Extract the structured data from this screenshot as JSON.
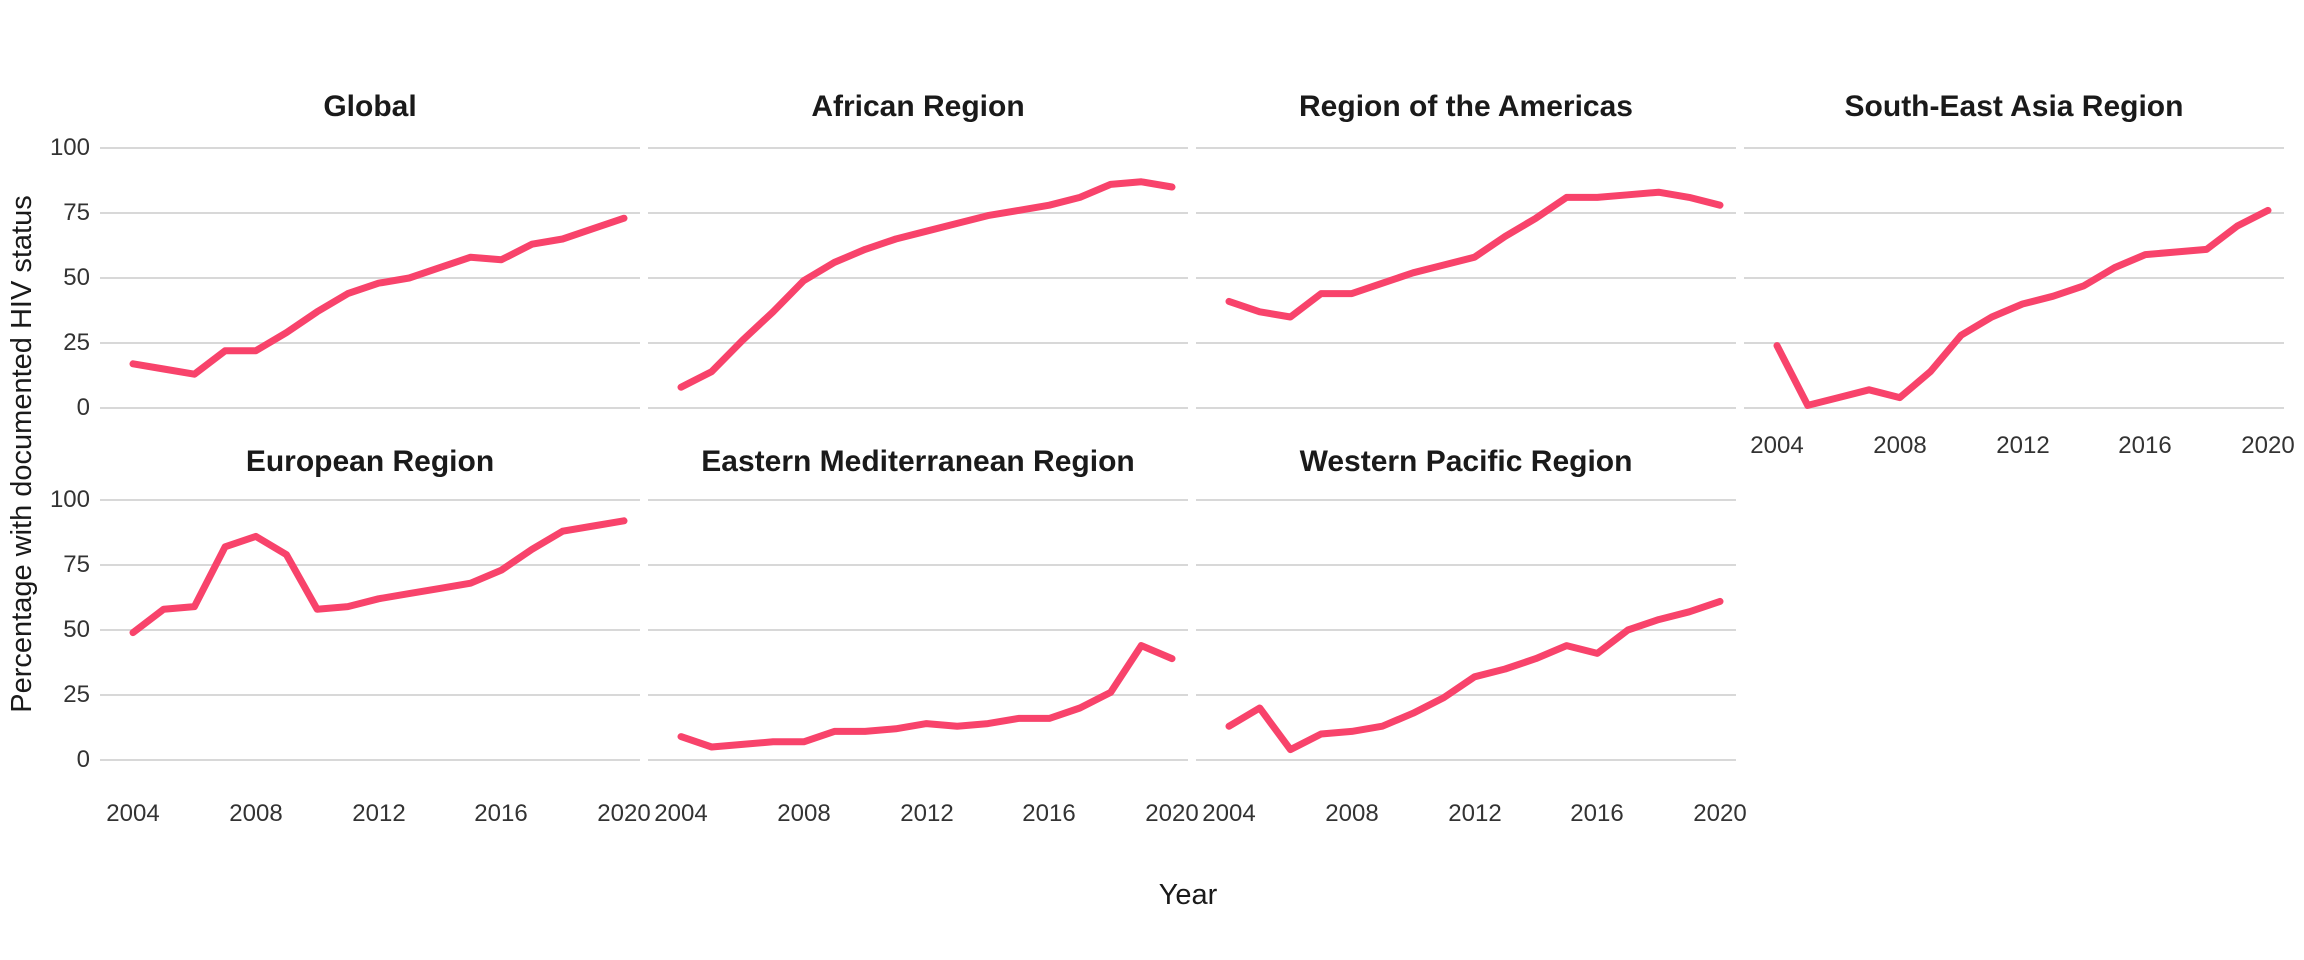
{
  "figure": {
    "xlabel": "Year",
    "ylabel": "Percentage with documented HIV status"
  },
  "chart_data": {
    "type": "line",
    "x": [
      2004,
      2005,
      2006,
      2007,
      2008,
      2009,
      2010,
      2011,
      2012,
      2013,
      2014,
      2015,
      2016,
      2017,
      2018,
      2019,
      2020
    ],
    "x_tick_labels": [
      "2004",
      "2008",
      "2012",
      "2016",
      "2020"
    ],
    "y_tick_labels": [
      "0",
      "25",
      "50",
      "75",
      "100"
    ],
    "ylim": [
      0,
      100
    ],
    "xlabel": "Year",
    "ylabel": "Percentage with documented HIV status",
    "grid": "horizontal-only",
    "legend": "none",
    "line_color": "#F8436B",
    "grid_color": "#D8D8D8",
    "panels": [
      {
        "title": "Global",
        "row": 0,
        "col": 0,
        "show_x_axis": false,
        "values": [
          17,
          15,
          13,
          22,
          22,
          29,
          37,
          44,
          48,
          50,
          54,
          58,
          57,
          63,
          65,
          69,
          73
        ]
      },
      {
        "title": "African Region",
        "row": 0,
        "col": 1,
        "show_x_axis": false,
        "values": [
          8,
          14,
          26,
          37,
          49,
          56,
          61,
          65,
          68,
          71,
          74,
          76,
          78,
          81,
          86,
          87,
          85
        ]
      },
      {
        "title": "Region of the Americas",
        "row": 0,
        "col": 2,
        "show_x_axis": false,
        "values": [
          41,
          37,
          35,
          44,
          44,
          48,
          52,
          55,
          58,
          66,
          73,
          81,
          81,
          82,
          83,
          81,
          78
        ]
      },
      {
        "title": "South-East Asia Region",
        "row": 0,
        "col": 3,
        "show_x_axis": true,
        "values": [
          24,
          1,
          4,
          7,
          4,
          14,
          28,
          35,
          40,
          43,
          47,
          54,
          59,
          60,
          61,
          70,
          76
        ]
      },
      {
        "title": "European Region",
        "row": 1,
        "col": 0,
        "show_x_axis": true,
        "values": [
          49,
          58,
          59,
          82,
          86,
          79,
          58,
          59,
          62,
          64,
          66,
          68,
          73,
          81,
          88,
          90,
          92
        ]
      },
      {
        "title": "Eastern Mediterranean Region",
        "row": 1,
        "col": 1,
        "show_x_axis": true,
        "values": [
          9,
          5,
          6,
          7,
          7,
          11,
          11,
          12,
          14,
          13,
          14,
          16,
          16,
          20,
          26,
          44,
          39
        ]
      },
      {
        "title": "Western Pacific Region",
        "row": 1,
        "col": 2,
        "show_x_axis": true,
        "values": [
          13,
          20,
          4,
          10,
          11,
          13,
          18,
          24,
          32,
          35,
          39,
          44,
          41,
          50,
          54,
          57,
          61
        ]
      }
    ]
  }
}
